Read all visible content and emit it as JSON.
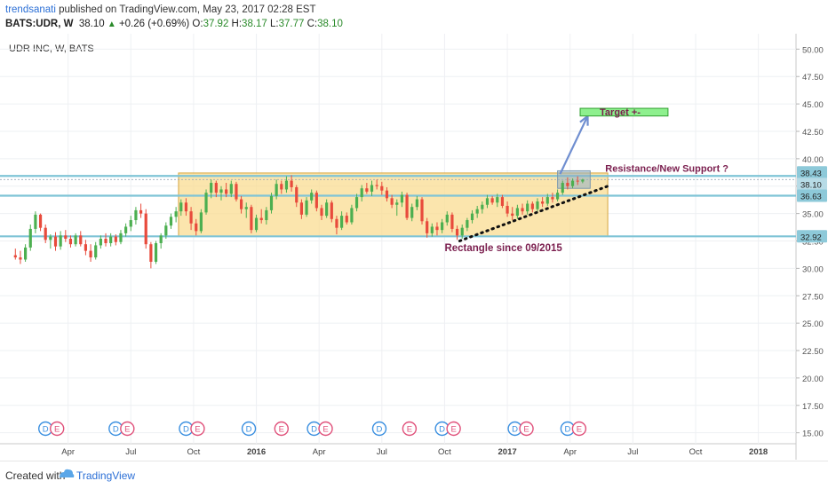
{
  "header": {
    "author": "trendsanati",
    "published_text": "published on TradingView.com, May 23, 2017 02:28 EST",
    "symbol": "BATS:UDR, W",
    "last": "38.10",
    "up_arrow": "▲",
    "change": "+0.26 (+0.69%)",
    "o_label": "O:",
    "o_value": "37.92",
    "h_label": "H:",
    "h_value": "38.17",
    "l_label": "L:",
    "l_value": "37.77",
    "c_label": "C:",
    "c_value": "38.10"
  },
  "footer": {
    "created_with": "Created with",
    "brand": "TradingView",
    "brand_icon": "tradingview-logo-icon"
  },
  "chart_data": {
    "type": "candlestick",
    "title": "UDR INC, W, BATS",
    "ylim": [
      14,
      51
    ],
    "y_ticks": [
      "15.00",
      "17.50",
      "20.00",
      "22.50",
      "25.00",
      "27.50",
      "30.00",
      "32.50",
      "35.00",
      "37.50",
      "40.00",
      "42.50",
      "45.00",
      "47.50",
      "50.00"
    ],
    "x_ticks": [
      {
        "label": "Apr",
        "x": 2014.25
      },
      {
        "label": "Jul",
        "x": 2014.5
      },
      {
        "label": "Oct",
        "x": 2014.75
      },
      {
        "label": "2016",
        "x": 2015.0,
        "bold": true
      },
      {
        "label": "Apr",
        "x": 2015.25
      },
      {
        "label": "Jul",
        "x": 2015.5
      },
      {
        "label": "Oct",
        "x": 2015.75
      },
      {
        "label": "2017",
        "x": 2016.0,
        "bold": true
      },
      {
        "label": "Apr",
        "x": 2016.25
      },
      {
        "label": "Jul",
        "x": 2016.5
      },
      {
        "label": "Oct",
        "x": 2016.75
      },
      {
        "label": "2018",
        "x": 2017.0,
        "bold": true
      }
    ],
    "price_levels": [
      {
        "label": "38.43",
        "value": 38.43
      },
      {
        "label": "38.10",
        "value": 38.1,
        "current": true
      },
      {
        "label": "36.63",
        "value": 36.63
      },
      {
        "label": "32.92",
        "value": 32.92
      }
    ],
    "annotations": {
      "rectangle_label": "Rectangle since 09/2015",
      "resistance_label": "Resistance/New Support ?",
      "target_label": "Target +-"
    },
    "colors": {
      "up": "#4caf50",
      "down": "#e84b3c",
      "rectangle_fill": "#f9dc92",
      "rectangle_border": "#d6a640",
      "level_line": "#7fc4d6",
      "target_fill": "#8ef08e",
      "arrow": "#6f8ed0",
      "annotation_text": "#7b1f4f",
      "earnings": "#e0507a",
      "dividend": "#3a8fe0"
    },
    "events": [
      {
        "x": 2014.16,
        "types": [
          "D",
          "E"
        ]
      },
      {
        "x": 2014.44,
        "types": [
          "D",
          "E"
        ]
      },
      {
        "x": 2014.72,
        "types": [
          "D",
          "E"
        ]
      },
      {
        "x": 2014.97,
        "types": [
          "D"
        ]
      },
      {
        "x": 2015.1,
        "types": [
          "E"
        ]
      },
      {
        "x": 2015.23,
        "types": [
          "D",
          "E"
        ]
      },
      {
        "x": 2015.49,
        "types": [
          "D"
        ]
      },
      {
        "x": 2015.61,
        "types": [
          "E"
        ]
      },
      {
        "x": 2015.74,
        "types": [
          "D",
          "E"
        ]
      },
      {
        "x": 2016.03,
        "types": [
          "D",
          "E"
        ]
      },
      {
        "x": 2016.24,
        "types": [
          "D",
          "E"
        ]
      }
    ],
    "candles": [
      {
        "x": 2014.04,
        "o": 31.2,
        "h": 31.8,
        "l": 30.8,
        "c": 31.0
      },
      {
        "x": 2014.06,
        "o": 31.0,
        "h": 31.6,
        "l": 30.4,
        "c": 30.8
      },
      {
        "x": 2014.08,
        "o": 30.8,
        "h": 32.2,
        "l": 30.6,
        "c": 31.9
      },
      {
        "x": 2014.1,
        "o": 31.9,
        "h": 34.0,
        "l": 31.6,
        "c": 33.6
      },
      {
        "x": 2014.12,
        "o": 33.6,
        "h": 35.2,
        "l": 33.2,
        "c": 34.9
      },
      {
        "x": 2014.14,
        "o": 34.9,
        "h": 35.0,
        "l": 33.4,
        "c": 33.7
      },
      {
        "x": 2014.16,
        "o": 33.7,
        "h": 34.0,
        "l": 32.3,
        "c": 32.6
      },
      {
        "x": 2014.18,
        "o": 32.6,
        "h": 33.1,
        "l": 31.8,
        "c": 32.9
      },
      {
        "x": 2014.2,
        "o": 32.9,
        "h": 33.3,
        "l": 31.6,
        "c": 32.0
      },
      {
        "x": 2014.22,
        "o": 32.0,
        "h": 33.4,
        "l": 31.7,
        "c": 33.0
      },
      {
        "x": 2014.24,
        "o": 33.0,
        "h": 33.5,
        "l": 32.4,
        "c": 32.7
      },
      {
        "x": 2014.26,
        "o": 32.7,
        "h": 33.0,
        "l": 31.9,
        "c": 32.2
      },
      {
        "x": 2014.28,
        "o": 32.2,
        "h": 33.2,
        "l": 32.0,
        "c": 33.0
      },
      {
        "x": 2014.3,
        "o": 33.0,
        "h": 33.4,
        "l": 32.0,
        "c": 32.2
      },
      {
        "x": 2014.32,
        "o": 32.2,
        "h": 32.6,
        "l": 31.2,
        "c": 31.6
      },
      {
        "x": 2014.34,
        "o": 31.6,
        "h": 32.2,
        "l": 30.6,
        "c": 31.0
      },
      {
        "x": 2014.36,
        "o": 31.0,
        "h": 32.4,
        "l": 30.8,
        "c": 32.1
      },
      {
        "x": 2014.38,
        "o": 32.1,
        "h": 33.0,
        "l": 31.8,
        "c": 32.7
      },
      {
        "x": 2014.4,
        "o": 32.7,
        "h": 33.2,
        "l": 32.0,
        "c": 32.3
      },
      {
        "x": 2014.42,
        "o": 32.3,
        "h": 33.2,
        "l": 32.0,
        "c": 32.9
      },
      {
        "x": 2014.44,
        "o": 32.9,
        "h": 33.1,
        "l": 32.1,
        "c": 32.4
      },
      {
        "x": 2014.46,
        "o": 32.4,
        "h": 33.5,
        "l": 32.2,
        "c": 33.2
      },
      {
        "x": 2014.48,
        "o": 33.2,
        "h": 34.1,
        "l": 32.9,
        "c": 33.8
      },
      {
        "x": 2014.5,
        "o": 33.8,
        "h": 34.8,
        "l": 33.4,
        "c": 34.4
      },
      {
        "x": 2014.52,
        "o": 34.4,
        "h": 35.6,
        "l": 34.0,
        "c": 35.3
      },
      {
        "x": 2014.54,
        "o": 35.3,
        "h": 35.9,
        "l": 34.6,
        "c": 35.0
      },
      {
        "x": 2014.56,
        "o": 35.0,
        "h": 35.4,
        "l": 31.8,
        "c": 32.2
      },
      {
        "x": 2014.58,
        "o": 32.2,
        "h": 32.4,
        "l": 30.0,
        "c": 30.6
      },
      {
        "x": 2014.6,
        "o": 30.6,
        "h": 32.5,
        "l": 30.4,
        "c": 32.3
      },
      {
        "x": 2014.62,
        "o": 32.3,
        "h": 33.2,
        "l": 31.8,
        "c": 33.0
      },
      {
        "x": 2014.64,
        "o": 33.0,
        "h": 34.2,
        "l": 32.7,
        "c": 33.9
      },
      {
        "x": 2014.66,
        "o": 33.9,
        "h": 35.0,
        "l": 33.6,
        "c": 34.7
      },
      {
        "x": 2014.68,
        "o": 34.7,
        "h": 35.6,
        "l": 34.2,
        "c": 35.2
      },
      {
        "x": 2014.7,
        "o": 35.2,
        "h": 36.3,
        "l": 34.8,
        "c": 36.0
      },
      {
        "x": 2014.72,
        "o": 36.0,
        "h": 36.4,
        "l": 34.8,
        "c": 35.2
      },
      {
        "x": 2014.74,
        "o": 35.2,
        "h": 35.6,
        "l": 33.5,
        "c": 34.1
      },
      {
        "x": 2014.76,
        "o": 34.1,
        "h": 34.5,
        "l": 33.0,
        "c": 33.4
      },
      {
        "x": 2014.78,
        "o": 33.4,
        "h": 35.4,
        "l": 33.2,
        "c": 35.1
      },
      {
        "x": 2014.8,
        "o": 35.1,
        "h": 37.2,
        "l": 34.9,
        "c": 36.9
      },
      {
        "x": 2014.82,
        "o": 36.9,
        "h": 38.1,
        "l": 36.4,
        "c": 37.8
      },
      {
        "x": 2014.84,
        "o": 37.8,
        "h": 38.0,
        "l": 36.5,
        "c": 36.9
      },
      {
        "x": 2014.86,
        "o": 36.9,
        "h": 37.5,
        "l": 36.2,
        "c": 37.2
      },
      {
        "x": 2014.88,
        "o": 37.2,
        "h": 37.8,
        "l": 36.5,
        "c": 36.8
      },
      {
        "x": 2014.9,
        "o": 36.8,
        "h": 38.0,
        "l": 36.5,
        "c": 37.7
      },
      {
        "x": 2014.92,
        "o": 37.7,
        "h": 37.9,
        "l": 36.1,
        "c": 36.3
      },
      {
        "x": 2014.94,
        "o": 36.3,
        "h": 36.6,
        "l": 35.0,
        "c": 35.4
      },
      {
        "x": 2014.96,
        "o": 35.4,
        "h": 36.0,
        "l": 34.6,
        "c": 35.6
      },
      {
        "x": 2014.98,
        "o": 35.6,
        "h": 35.8,
        "l": 33.2,
        "c": 33.5
      },
      {
        "x": 2015.0,
        "o": 33.5,
        "h": 34.9,
        "l": 33.3,
        "c": 34.6
      },
      {
        "x": 2015.02,
        "o": 34.6,
        "h": 35.4,
        "l": 34.1,
        "c": 34.4
      },
      {
        "x": 2015.04,
        "o": 34.4,
        "h": 35.6,
        "l": 34.0,
        "c": 35.3
      },
      {
        "x": 2015.06,
        "o": 35.3,
        "h": 36.9,
        "l": 35.0,
        "c": 36.6
      },
      {
        "x": 2015.08,
        "o": 36.6,
        "h": 38.1,
        "l": 36.3,
        "c": 37.7
      },
      {
        "x": 2015.1,
        "o": 37.7,
        "h": 38.0,
        "l": 36.8,
        "c": 37.2
      },
      {
        "x": 2015.12,
        "o": 37.2,
        "h": 38.4,
        "l": 36.9,
        "c": 38.0
      },
      {
        "x": 2015.14,
        "o": 38.0,
        "h": 38.5,
        "l": 37.0,
        "c": 37.4
      },
      {
        "x": 2015.16,
        "o": 37.4,
        "h": 37.6,
        "l": 35.6,
        "c": 36.0
      },
      {
        "x": 2015.18,
        "o": 36.0,
        "h": 36.3,
        "l": 34.5,
        "c": 34.9
      },
      {
        "x": 2015.2,
        "o": 34.9,
        "h": 36.5,
        "l": 34.7,
        "c": 36.2
      },
      {
        "x": 2015.22,
        "o": 36.2,
        "h": 37.2,
        "l": 35.9,
        "c": 36.9
      },
      {
        "x": 2015.24,
        "o": 36.9,
        "h": 37.1,
        "l": 35.2,
        "c": 35.5
      },
      {
        "x": 2015.26,
        "o": 35.5,
        "h": 35.8,
        "l": 34.4,
        "c": 34.8
      },
      {
        "x": 2015.28,
        "o": 34.8,
        "h": 36.3,
        "l": 34.6,
        "c": 36.0
      },
      {
        "x": 2015.3,
        "o": 36.0,
        "h": 36.2,
        "l": 34.2,
        "c": 34.5
      },
      {
        "x": 2015.32,
        "o": 34.5,
        "h": 34.8,
        "l": 33.1,
        "c": 33.7
      },
      {
        "x": 2015.34,
        "o": 33.7,
        "h": 35.2,
        "l": 33.5,
        "c": 34.8
      },
      {
        "x": 2015.36,
        "o": 34.8,
        "h": 35.1,
        "l": 34.0,
        "c": 34.2
      },
      {
        "x": 2015.38,
        "o": 34.2,
        "h": 35.8,
        "l": 34.0,
        "c": 35.5
      },
      {
        "x": 2015.4,
        "o": 35.5,
        "h": 36.8,
        "l": 35.2,
        "c": 36.5
      },
      {
        "x": 2015.42,
        "o": 36.5,
        "h": 37.6,
        "l": 36.1,
        "c": 37.3
      },
      {
        "x": 2015.44,
        "o": 37.3,
        "h": 37.8,
        "l": 36.8,
        "c": 37.0
      },
      {
        "x": 2015.46,
        "o": 37.0,
        "h": 38.0,
        "l": 36.6,
        "c": 37.6
      },
      {
        "x": 2015.48,
        "o": 37.6,
        "h": 38.1,
        "l": 37.2,
        "c": 37.5
      },
      {
        "x": 2015.5,
        "o": 37.5,
        "h": 37.9,
        "l": 36.7,
        "c": 37.1
      },
      {
        "x": 2015.52,
        "o": 37.1,
        "h": 37.4,
        "l": 36.1,
        "c": 36.4
      },
      {
        "x": 2015.54,
        "o": 36.4,
        "h": 36.7,
        "l": 35.5,
        "c": 35.8
      },
      {
        "x": 2015.56,
        "o": 35.8,
        "h": 36.3,
        "l": 34.8,
        "c": 36.0
      },
      {
        "x": 2015.58,
        "o": 36.0,
        "h": 37.0,
        "l": 35.6,
        "c": 36.7
      },
      {
        "x": 2015.6,
        "o": 36.7,
        "h": 36.9,
        "l": 34.4,
        "c": 34.6
      },
      {
        "x": 2015.62,
        "o": 34.6,
        "h": 35.9,
        "l": 34.3,
        "c": 35.6
      },
      {
        "x": 2015.64,
        "o": 35.6,
        "h": 36.6,
        "l": 35.3,
        "c": 36.3
      },
      {
        "x": 2015.66,
        "o": 36.3,
        "h": 36.5,
        "l": 34.0,
        "c": 34.3
      },
      {
        "x": 2015.68,
        "o": 34.3,
        "h": 34.6,
        "l": 32.8,
        "c": 33.2
      },
      {
        "x": 2015.7,
        "o": 33.2,
        "h": 34.1,
        "l": 32.9,
        "c": 33.8
      },
      {
        "x": 2015.72,
        "o": 33.8,
        "h": 34.2,
        "l": 33.0,
        "c": 33.5
      },
      {
        "x": 2015.74,
        "o": 33.5,
        "h": 34.5,
        "l": 33.2,
        "c": 34.2
      },
      {
        "x": 2015.76,
        "o": 34.2,
        "h": 35.2,
        "l": 33.9,
        "c": 34.9
      },
      {
        "x": 2015.78,
        "o": 34.9,
        "h": 35.1,
        "l": 33.3,
        "c": 33.6
      },
      {
        "x": 2015.8,
        "o": 33.6,
        "h": 33.9,
        "l": 32.6,
        "c": 33.0
      },
      {
        "x": 2015.82,
        "o": 33.0,
        "h": 34.0,
        "l": 32.7,
        "c": 33.7
      },
      {
        "x": 2015.84,
        "o": 33.7,
        "h": 34.6,
        "l": 33.4,
        "c": 34.4
      },
      {
        "x": 2015.86,
        "o": 34.4,
        "h": 35.3,
        "l": 34.1,
        "c": 35.0
      },
      {
        "x": 2015.88,
        "o": 35.0,
        "h": 35.7,
        "l": 34.6,
        "c": 35.4
      },
      {
        "x": 2015.9,
        "o": 35.4,
        "h": 36.1,
        "l": 35.0,
        "c": 35.8
      },
      {
        "x": 2015.92,
        "o": 35.8,
        "h": 36.7,
        "l": 35.5,
        "c": 36.4
      },
      {
        "x": 2015.94,
        "o": 36.4,
        "h": 36.6,
        "l": 35.8,
        "c": 36.0
      },
      {
        "x": 2015.96,
        "o": 36.0,
        "h": 36.8,
        "l": 35.6,
        "c": 36.5
      },
      {
        "x": 2015.98,
        "o": 36.5,
        "h": 36.7,
        "l": 35.5,
        "c": 35.7
      },
      {
        "x": 2016.0,
        "o": 35.7,
        "h": 36.1,
        "l": 34.7,
        "c": 35.0
      },
      {
        "x": 2016.02,
        "o": 35.0,
        "h": 35.6,
        "l": 34.4,
        "c": 34.8
      },
      {
        "x": 2016.04,
        "o": 34.8,
        "h": 35.8,
        "l": 34.5,
        "c": 35.5
      },
      {
        "x": 2016.06,
        "o": 35.5,
        "h": 35.9,
        "l": 34.9,
        "c": 35.2
      },
      {
        "x": 2016.08,
        "o": 35.2,
        "h": 36.2,
        "l": 34.9,
        "c": 35.9
      },
      {
        "x": 2016.1,
        "o": 35.9,
        "h": 36.1,
        "l": 35.1,
        "c": 35.4
      },
      {
        "x": 2016.12,
        "o": 35.4,
        "h": 36.4,
        "l": 35.2,
        "c": 36.1
      },
      {
        "x": 2016.14,
        "o": 36.1,
        "h": 36.5,
        "l": 35.6,
        "c": 35.9
      },
      {
        "x": 2016.16,
        "o": 35.9,
        "h": 36.8,
        "l": 35.7,
        "c": 36.5
      },
      {
        "x": 2016.18,
        "o": 36.5,
        "h": 36.9,
        "l": 36.0,
        "c": 36.3
      },
      {
        "x": 2016.2,
        "o": 36.3,
        "h": 37.2,
        "l": 36.1,
        "c": 36.9
      },
      {
        "x": 2016.22,
        "o": 36.9,
        "h": 38.0,
        "l": 36.7,
        "c": 37.8
      },
      {
        "x": 2016.24,
        "o": 37.8,
        "h": 38.3,
        "l": 37.2,
        "c": 37.5
      },
      {
        "x": 2016.26,
        "o": 37.5,
        "h": 38.2,
        "l": 37.3,
        "c": 38.0
      },
      {
        "x": 2016.28,
        "o": 38.0,
        "h": 38.4,
        "l": 37.6,
        "c": 37.92
      },
      {
        "x": 2016.3,
        "o": 37.92,
        "h": 38.17,
        "l": 37.77,
        "c": 38.1
      }
    ]
  }
}
